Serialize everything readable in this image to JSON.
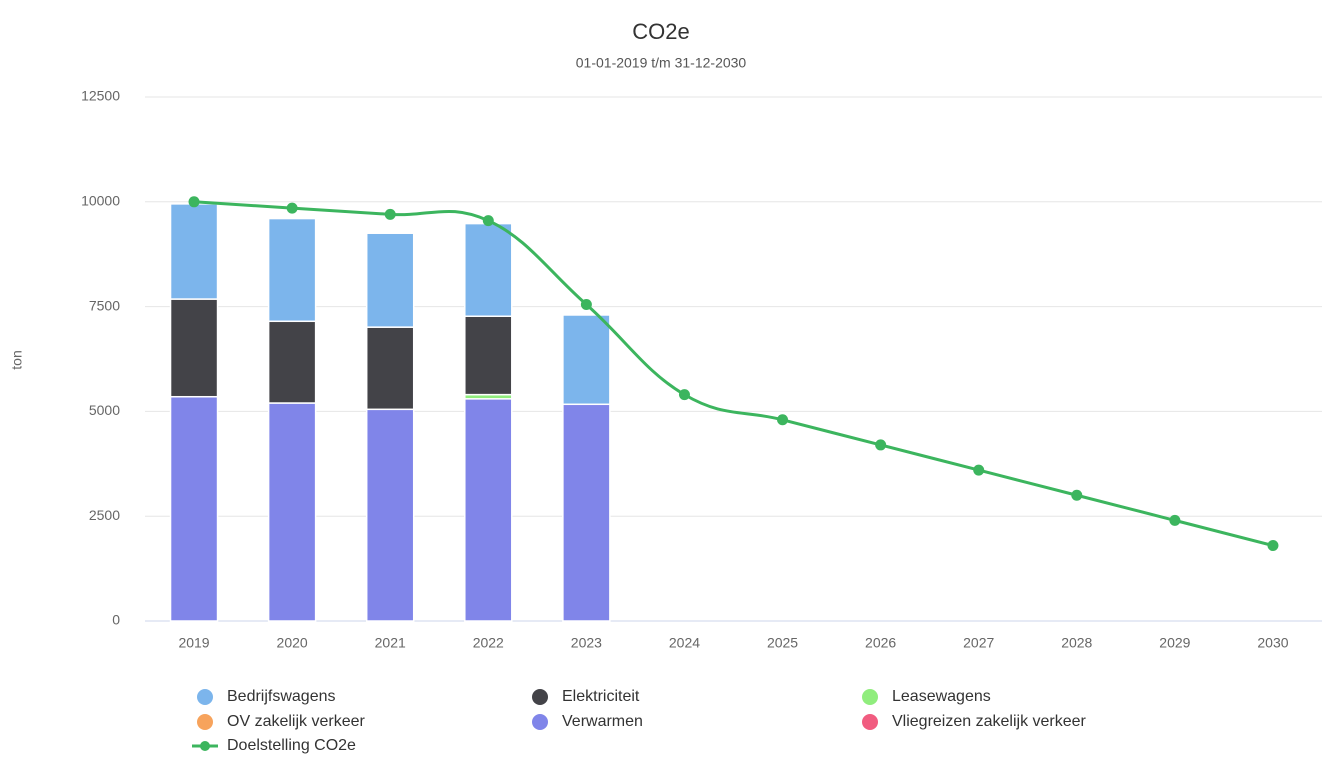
{
  "chart_data": {
    "type": "bar",
    "stacked": true,
    "title": "CO2e",
    "subtitle": "01-01-2019 t/m 31-12-2030",
    "y_label": "ton",
    "categories": [
      "2019",
      "2020",
      "2021",
      "2022",
      "2023",
      "2024",
      "2025",
      "2026",
      "2027",
      "2028",
      "2029",
      "2030"
    ],
    "ylim": [
      0,
      12500
    ],
    "yticks": [
      0,
      2500,
      5000,
      7500,
      10000,
      12500
    ],
    "grid": true,
    "series": [
      {
        "name": "Bedrijfswagens",
        "color": "#7cb5ec",
        "values": [
          2270,
          2450,
          2240,
          2210,
          2130,
          null,
          null,
          null,
          null,
          null,
          null,
          null
        ]
      },
      {
        "name": "Elektriciteit",
        "color": "#434348",
        "values": [
          2330,
          1950,
          1960,
          1870,
          0,
          null,
          null,
          null,
          null,
          null,
          null,
          null
        ]
      },
      {
        "name": "Leasewagens",
        "color": "#90ed7d",
        "values": [
          0,
          0,
          0,
          100,
          0,
          null,
          null,
          null,
          null,
          null,
          null,
          null
        ]
      },
      {
        "name": "OV zakelijk verkeer",
        "color": "#f7a35c",
        "values": [
          0,
          0,
          0,
          0,
          0,
          null,
          null,
          null,
          null,
          null,
          null,
          null
        ]
      },
      {
        "name": "Verwarmen",
        "color": "#8085e9",
        "values": [
          5350,
          5200,
          5050,
          5300,
          5170,
          null,
          null,
          null,
          null,
          null,
          null,
          null
        ]
      },
      {
        "name": "Vliegreizen zakelijk verkeer",
        "color": "#f15c80",
        "values": [
          0,
          0,
          0,
          0,
          0,
          null,
          null,
          null,
          null,
          null,
          null,
          null
        ]
      },
      {
        "name": "Doelstelling CO2e",
        "type": "spline",
        "color": "#3cb55e",
        "values": [
          10000,
          9850,
          9700,
          9550,
          7550,
          5400,
          4800,
          4200,
          3600,
          3000,
          2400,
          1800
        ]
      }
    ]
  }
}
